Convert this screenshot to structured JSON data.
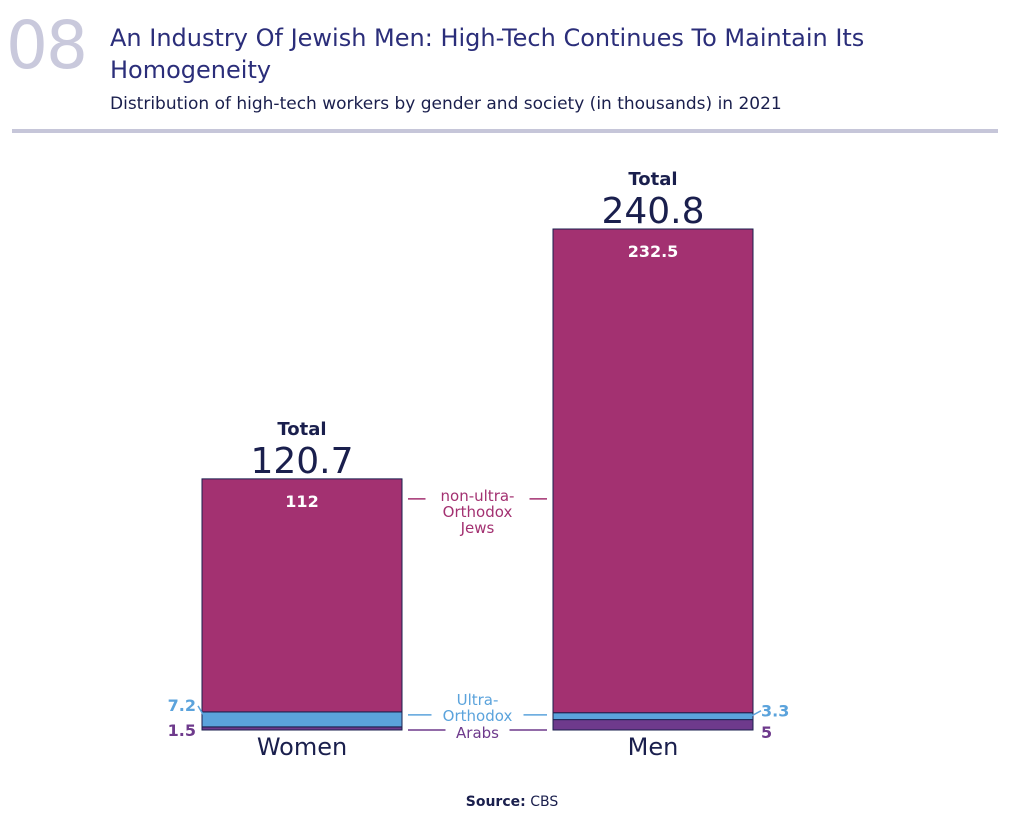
{
  "header": {
    "number": "08",
    "title": "An Industry Of Jewish Men: High-Tech Continues To Maintain Its Homogeneity",
    "subtitle": "Distribution of high-tech workers by gender and society (in thousands) in 2021"
  },
  "source": {
    "label": "Source:",
    "value": "CBS"
  },
  "colors": {
    "non_ultra_orthodox": "#a33171",
    "ultra_orthodox": "#5ba3dc",
    "arabs": "#6e3a8c",
    "text_dark": "#1a1f4d",
    "title": "#2b2e7a",
    "number": "#c9c9dc",
    "rule": "#c6c6d9"
  },
  "chart_data": {
    "type": "bar",
    "stacked": true,
    "title": "Distribution of high-tech workers by gender and society (in thousands) in 2021",
    "units": "thousands",
    "categories": [
      "Women",
      "Men"
    ],
    "series": [
      {
        "name": "Arabs",
        "label_lines": [
          "Arabs"
        ],
        "values": [
          1.5,
          5
        ]
      },
      {
        "name": "Ultra-Orthodox",
        "label_lines": [
          "Ultra-",
          "Orthodox"
        ],
        "values": [
          7.2,
          3.3
        ]
      },
      {
        "name": "non-ultra-Orthodox Jews",
        "label_lines": [
          "non-ultra-",
          "Orthodox",
          "Jews"
        ],
        "values": [
          112,
          232.5
        ]
      }
    ],
    "value_labels": {
      "Arabs": [
        "1.5",
        "5"
      ],
      "Ultra-Orthodox": [
        "7.2",
        "3.3"
      ],
      "non-ultra-Orthodox Jews": [
        "112",
        "232.5"
      ]
    },
    "totals": [
      120.7,
      240.8
    ],
    "total_labels": [
      "120.7",
      "240.8"
    ],
    "total_caption": "Total",
    "ylim": [
      0,
      240.8
    ],
    "xlabel": "",
    "ylabel": "",
    "grid": false,
    "legend": "center"
  }
}
